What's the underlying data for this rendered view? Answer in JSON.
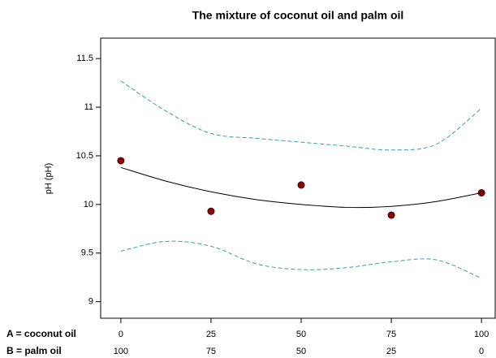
{
  "chart_data": {
    "type": "scatter",
    "title": "The mixture of coconut oil and palm oil",
    "ylabel": "pH (pH)",
    "xlabel": "A = coconut oil",
    "x2label": "B = palm oil",
    "xlim": [
      -5.6,
      103.8
    ],
    "xticks": [
      0,
      25,
      50,
      75,
      100
    ],
    "x2lim": [
      105.6,
      -3.8
    ],
    "x2ticks": [
      100,
      75,
      50,
      25,
      0
    ],
    "ylim": [
      8.83,
      11.71
    ],
    "yticks": [
      9,
      9.5,
      10,
      10.5,
      11,
      11.5
    ],
    "series": [
      {
        "style": "points",
        "color": "#8b0000",
        "x": [
          0,
          25,
          50,
          75,
          100
        ],
        "values": [
          10.45,
          9.93,
          10.2,
          9.89,
          10.12
        ]
      },
      {
        "style": "line",
        "color": "#000000",
        "x": [
          0,
          12.5,
          25,
          37.5,
          50,
          62.5,
          75,
          87.5,
          100
        ],
        "values": [
          10.38,
          10.24,
          10.13,
          10.05,
          10.0,
          9.97,
          9.98,
          10.03,
          10.12
        ]
      },
      {
        "style": "dashed",
        "color": "#3aa0a0",
        "x": [
          0,
          12.5,
          25,
          37.5,
          50,
          62.5,
          75,
          87.5,
          100
        ],
        "values": [
          11.27,
          10.96,
          10.73,
          10.68,
          10.64,
          10.6,
          10.56,
          10.62,
          10.99
        ]
      },
      {
        "style": "dashed",
        "color": "#3aa0a0",
        "x": [
          0,
          12.5,
          25,
          37.5,
          50,
          62.5,
          75,
          87.5,
          100
        ],
        "values": [
          9.52,
          9.62,
          9.57,
          9.39,
          9.33,
          9.35,
          9.41,
          9.43,
          9.24
        ]
      }
    ]
  }
}
